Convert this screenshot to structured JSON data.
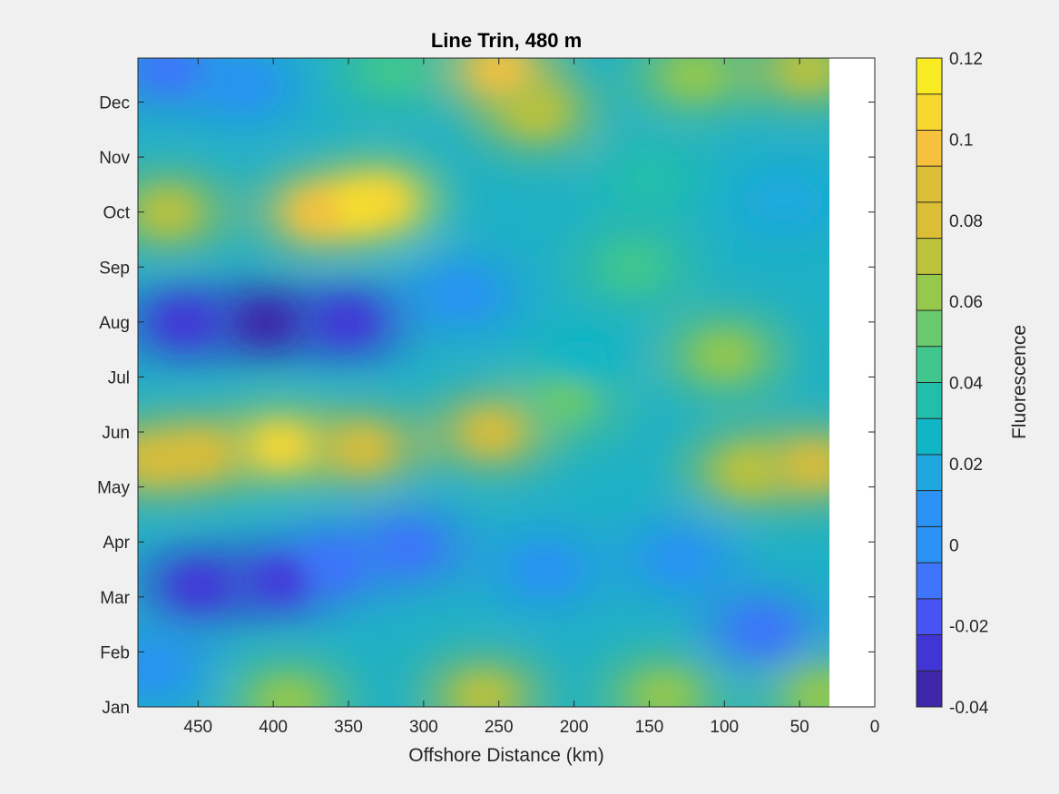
{
  "chart_data": {
    "type": "heatmap",
    "subtype": "filled-contour",
    "title": "Line Trin, 480 m",
    "xlabel": "Offshore Distance (km)",
    "ylabel": "",
    "colorbar_label": "Fluorescence",
    "xlim": [
      490,
      0
    ],
    "x_reversed": true,
    "x_ticks": [
      450,
      400,
      350,
      300,
      250,
      200,
      150,
      100,
      50,
      0
    ],
    "y_ticks": [
      "Jan",
      "Feb",
      "Mar",
      "Apr",
      "May",
      "Jun",
      "Jul",
      "Aug",
      "Sep",
      "Oct",
      "Nov",
      "Dec"
    ],
    "data_x_extent": [
      490,
      30
    ],
    "colorbar_ticks": [
      "-0.04",
      "-0.02",
      "0",
      "0.02",
      "0.04",
      "0.06",
      "0.08",
      "0.1",
      "0.12"
    ],
    "clim": [
      -0.04,
      0.12
    ],
    "levels": 18,
    "colormap": "parula",
    "features": [
      {
        "x": 345,
        "month": 10.1,
        "value": 0.11
      },
      {
        "x": 330,
        "month": 10.2,
        "value": 0.1
      },
      {
        "x": 370,
        "month": 10.0,
        "value": 0.09
      },
      {
        "x": 470,
        "month": 10.0,
        "value": 0.07
      },
      {
        "x": 250,
        "month": 12.6,
        "value": 0.09
      },
      {
        "x": 225,
        "month": 11.8,
        "value": 0.07
      },
      {
        "x": 120,
        "month": 12.5,
        "value": 0.06
      },
      {
        "x": 45,
        "month": 12.6,
        "value": 0.07
      },
      {
        "x": 405,
        "month": 8.0,
        "value": -0.035
      },
      {
        "x": 460,
        "month": 8.0,
        "value": -0.03
      },
      {
        "x": 350,
        "month": 8.0,
        "value": -0.025
      },
      {
        "x": 275,
        "month": 8.5,
        "value": 0.0
      },
      {
        "x": 160,
        "month": 9.0,
        "value": 0.045
      },
      {
        "x": 395,
        "month": 5.75,
        "value": 0.1
      },
      {
        "x": 480,
        "month": 5.5,
        "value": 0.08
      },
      {
        "x": 450,
        "month": 5.6,
        "value": 0.085
      },
      {
        "x": 340,
        "month": 5.7,
        "value": 0.085
      },
      {
        "x": 255,
        "month": 6.0,
        "value": 0.08
      },
      {
        "x": 205,
        "month": 6.6,
        "value": 0.05
      },
      {
        "x": 195,
        "month": 7.3,
        "value": 0.02
      },
      {
        "x": 85,
        "month": 5.3,
        "value": 0.07
      },
      {
        "x": 40,
        "month": 5.4,
        "value": 0.08
      },
      {
        "x": 450,
        "month": 3.2,
        "value": -0.03
      },
      {
        "x": 395,
        "month": 3.3,
        "value": -0.025
      },
      {
        "x": 360,
        "month": 3.6,
        "value": -0.01
      },
      {
        "x": 310,
        "month": 3.9,
        "value": -0.01
      },
      {
        "x": 220,
        "month": 3.5,
        "value": 0.005
      },
      {
        "x": 130,
        "month": 3.7,
        "value": 0.0
      },
      {
        "x": 75,
        "month": 2.4,
        "value": -0.01
      },
      {
        "x": 260,
        "month": 1.2,
        "value": 0.07
      },
      {
        "x": 140,
        "month": 1.2,
        "value": 0.06
      },
      {
        "x": 390,
        "month": 1.1,
        "value": 0.06
      },
      {
        "x": 35,
        "month": 1.2,
        "value": 0.065
      },
      {
        "x": 480,
        "month": 1.7,
        "value": 0.005
      },
      {
        "x": 470,
        "month": 12.6,
        "value": -0.01
      },
      {
        "x": 420,
        "month": 12.3,
        "value": 0.005
      },
      {
        "x": 320,
        "month": 12.6,
        "value": 0.04
      },
      {
        "x": 150,
        "month": 10.6,
        "value": 0.03
      },
      {
        "x": 60,
        "month": 10.2,
        "value": 0.015
      },
      {
        "x": 100,
        "month": 7.4,
        "value": 0.06
      }
    ]
  }
}
